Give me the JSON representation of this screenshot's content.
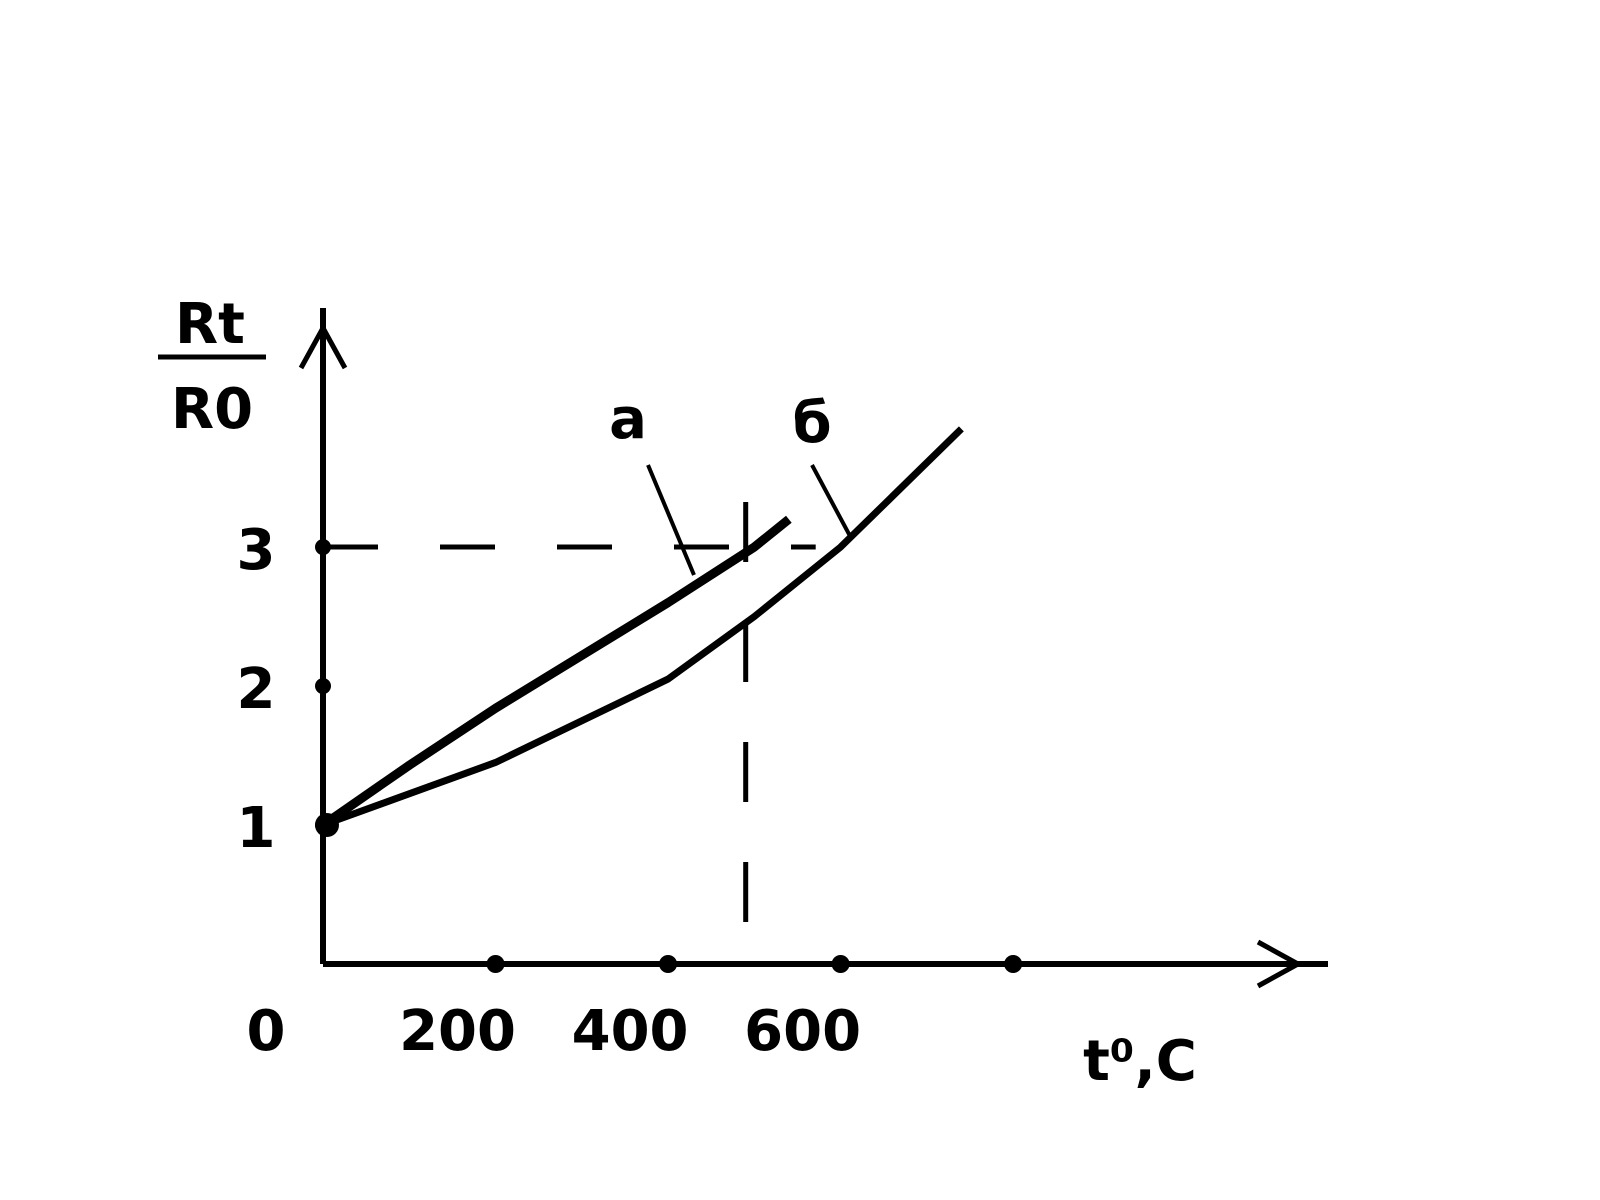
{
  "chart_data": {
    "type": "line",
    "ylabel_numerator": "Rt",
    "ylabel_denominator": "R0",
    "xlabel": "t⁰,C",
    "xlim": [
      0,
      1165
    ],
    "ylim": [
      0,
      4.72
    ],
    "xticks": [
      0,
      200,
      400,
      600
    ],
    "yticks": [
      1,
      2,
      3
    ],
    "x_dots": [
      200,
      400,
      600,
      800
    ],
    "series": [
      {
        "name": "а",
        "color": "#000000",
        "x": [
          0,
          100,
          200,
          300,
          400,
          500,
          540
        ],
        "values": [
          1.0,
          1.43,
          1.84,
          2.22,
          2.6,
          3.0,
          3.2
        ]
      },
      {
        "name": "б",
        "color": "#000000",
        "x": [
          0,
          200,
          400,
          500,
          600,
          740
        ],
        "values": [
          1.0,
          1.45,
          2.05,
          2.5,
          3.0,
          3.85
        ]
      }
    ],
    "reference": {
      "x": 490,
      "y": 3
    }
  }
}
